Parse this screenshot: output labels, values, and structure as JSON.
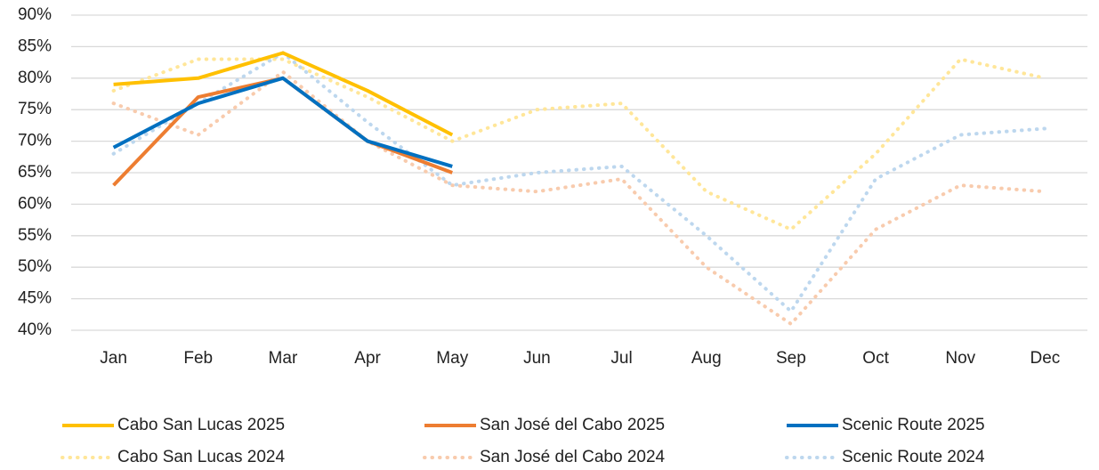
{
  "chart_data": {
    "type": "line",
    "categories": [
      "Jan",
      "Feb",
      "Mar",
      "Apr",
      "May",
      "Jun",
      "Jul",
      "Aug",
      "Sep",
      "Oct",
      "Nov",
      "Dec"
    ],
    "ylim": [
      40,
      90
    ],
    "yticks": [
      {
        "value": 40,
        "label": "40%"
      },
      {
        "value": 45,
        "label": "45%"
      },
      {
        "value": 50,
        "label": "50%"
      },
      {
        "value": 55,
        "label": "55%"
      },
      {
        "value": 60,
        "label": "60%"
      },
      {
        "value": 65,
        "label": "65%"
      },
      {
        "value": 70,
        "label": "70%"
      },
      {
        "value": 75,
        "label": "75%"
      },
      {
        "value": 80,
        "label": "80%"
      },
      {
        "value": 85,
        "label": "85%"
      },
      {
        "value": 90,
        "label": "90%"
      }
    ],
    "grid": true,
    "legend": "bottom",
    "series": [
      {
        "name": "Cabo San Lucas 2025",
        "color": "#ffc000",
        "style": "solid",
        "values": [
          79,
          80,
          84,
          78,
          71,
          null,
          null,
          null,
          null,
          null,
          null,
          null
        ]
      },
      {
        "name": "San José del Cabo 2025",
        "color": "#ed7d31",
        "style": "solid",
        "values": [
          63,
          77,
          80,
          70,
          65,
          null,
          null,
          null,
          null,
          null,
          null,
          null
        ]
      },
      {
        "name": "Scenic Route 2025",
        "color": "#0070c0",
        "style": "solid",
        "values": [
          69,
          76,
          80,
          70,
          66,
          null,
          null,
          null,
          null,
          null,
          null,
          null
        ]
      },
      {
        "name": "Cabo San Lucas 2024",
        "color": "#ffe699",
        "style": "dotted",
        "values": [
          78,
          83,
          83,
          77,
          70,
          75,
          76,
          62,
          56,
          68,
          83,
          80
        ]
      },
      {
        "name": "San José del Cabo 2024",
        "color": "#f8cbad",
        "style": "dotted",
        "values": [
          76,
          71,
          81,
          70,
          63,
          62,
          64,
          50,
          41,
          56,
          63,
          62
        ]
      },
      {
        "name": "Scenic Route 2024",
        "color": "#bdd7ee",
        "style": "dotted",
        "values": [
          68,
          76,
          84,
          73,
          63,
          65,
          66,
          55,
          43,
          64,
          71,
          72
        ]
      }
    ]
  }
}
